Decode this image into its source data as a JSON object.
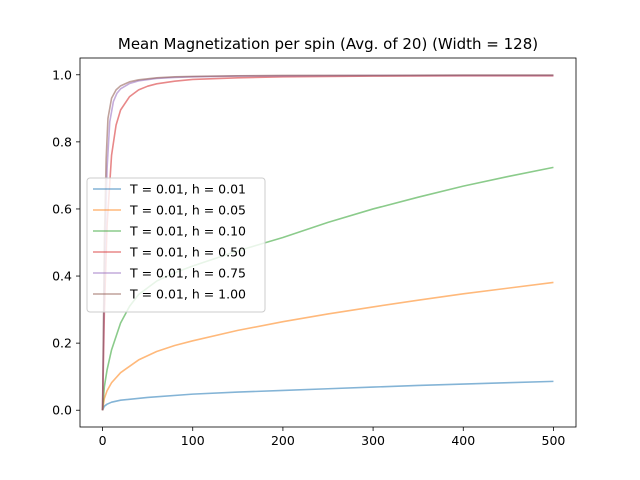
{
  "chart_data": {
    "type": "line",
    "title": "Mean Magnetization per spin (Avg. of 20) (Width = 128)",
    "xlabel": "",
    "ylabel": "",
    "xlim": [
      -25,
      525
    ],
    "ylim": [
      -0.05,
      1.05
    ],
    "xticks": [
      0,
      100,
      200,
      300,
      400,
      500
    ],
    "yticks": [
      0.0,
      0.2,
      0.4,
      0.6,
      0.8,
      1.0
    ],
    "xtick_labels": [
      "0",
      "100",
      "200",
      "300",
      "400",
      "500"
    ],
    "ytick_labels": [
      "0.0",
      "0.2",
      "0.4",
      "0.6",
      "0.8",
      "1.0"
    ],
    "grid": false,
    "legend_position": "center-left",
    "series": [
      {
        "name": "T = 0.01, h = 0.01",
        "color": "#1f77b4",
        "x": [
          0,
          2,
          5,
          10,
          20,
          50,
          100,
          150,
          200,
          250,
          300,
          350,
          400,
          450,
          500
        ],
        "y": [
          0.0,
          0.012,
          0.018,
          0.024,
          0.03,
          0.038,
          0.048,
          0.054,
          0.059,
          0.064,
          0.069,
          0.074,
          0.078,
          0.082,
          0.086
        ]
      },
      {
        "name": "T = 0.01, h = 0.05",
        "color": "#ff7f0e",
        "x": [
          0,
          2,
          5,
          10,
          20,
          40,
          60,
          80,
          100,
          150,
          200,
          250,
          300,
          350,
          400,
          450,
          500
        ],
        "y": [
          0.0,
          0.035,
          0.058,
          0.082,
          0.112,
          0.15,
          0.175,
          0.193,
          0.207,
          0.238,
          0.264,
          0.287,
          0.308,
          0.328,
          0.347,
          0.364,
          0.381
        ]
      },
      {
        "name": "T = 0.01, h = 0.10",
        "color": "#2ca02c",
        "x": [
          0,
          2,
          5,
          10,
          20,
          30,
          40,
          60,
          80,
          100,
          150,
          200,
          250,
          300,
          350,
          400,
          450,
          500
        ],
        "y": [
          0.0,
          0.07,
          0.12,
          0.18,
          0.26,
          0.31,
          0.345,
          0.385,
          0.41,
          0.43,
          0.475,
          0.515,
          0.56,
          0.6,
          0.635,
          0.668,
          0.697,
          0.724
        ]
      },
      {
        "name": "T = 0.01, h = 0.50",
        "color": "#d62728",
        "x": [
          0,
          2,
          5,
          10,
          15,
          20,
          30,
          40,
          50,
          60,
          80,
          100,
          150,
          200,
          300,
          400,
          500
        ],
        "y": [
          0.0,
          0.29,
          0.55,
          0.76,
          0.85,
          0.895,
          0.935,
          0.955,
          0.966,
          0.973,
          0.981,
          0.986,
          0.991,
          0.994,
          0.996,
          0.997,
          0.997
        ]
      },
      {
        "name": "T = 0.01, h = 0.75",
        "color": "#9467bd",
        "x": [
          0,
          2,
          5,
          8,
          12,
          16,
          20,
          30,
          40,
          60,
          80,
          100,
          150,
          200,
          300,
          400,
          500
        ],
        "y": [
          0.0,
          0.4,
          0.72,
          0.86,
          0.92,
          0.945,
          0.958,
          0.974,
          0.982,
          0.989,
          0.992,
          0.994,
          0.996,
          0.997,
          0.998,
          0.998,
          0.998
        ]
      },
      {
        "name": "T = 0.01, h = 1.00",
        "color": "#8c564b",
        "x": [
          0,
          2,
          4,
          6,
          10,
          15,
          20,
          30,
          40,
          60,
          80,
          100,
          150,
          200,
          300,
          400,
          500
        ],
        "y": [
          0.0,
          0.5,
          0.75,
          0.87,
          0.93,
          0.955,
          0.967,
          0.979,
          0.985,
          0.991,
          0.994,
          0.995,
          0.997,
          0.998,
          0.998,
          0.999,
          0.999
        ]
      }
    ]
  }
}
